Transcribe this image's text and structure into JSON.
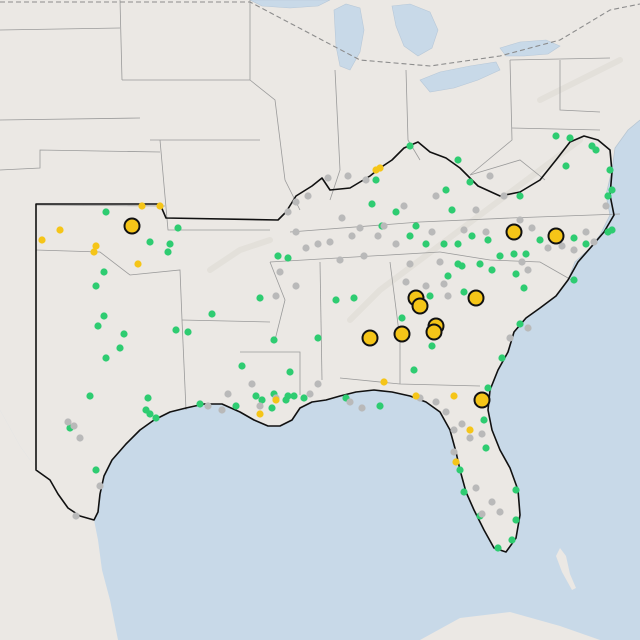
{
  "map": {
    "colors": {
      "land": "#ebe8e4",
      "water": "#c8d9e8",
      "state_border": "#9a9a9a",
      "region_outline": "#111111",
      "marker_green": "#2ecc71",
      "marker_gray": "#b9b9b9",
      "marker_yellow": "#f5c518",
      "marker_large_fill": "#f5c518",
      "marker_large_stroke": "#111111"
    },
    "marker_categories": [
      "green",
      "gray",
      "yellow",
      "large-yellow"
    ]
  }
}
